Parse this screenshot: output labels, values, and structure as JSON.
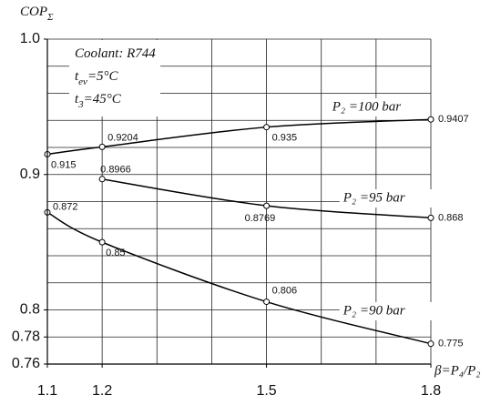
{
  "chart_data": {
    "type": "line",
    "y_label": [
      {
        "text": "COP",
        "sub": false
      },
      {
        "text": "Σ",
        "sub": true
      }
    ],
    "x_label": "β=P₄/P₂",
    "annotation": [
      [
        {
          "text": "Coolant: R744",
          "sub": false
        }
      ],
      [
        {
          "text": "t",
          "sub": false
        },
        {
          "text": "ev",
          "sub": true
        },
        {
          "text": "=5°C",
          "sub": false
        }
      ],
      [
        {
          "text": "t",
          "sub": false
        },
        {
          "text": "3",
          "sub": true
        },
        {
          "text": "=45°C",
          "sub": false
        }
      ]
    ],
    "x": [
      1.1,
      1.2,
      1.5,
      1.8
    ],
    "series": [
      {
        "name": "P₂ =100 bar",
        "color": "#000000",
        "values": [
          0.915,
          0.9204,
          0.935,
          0.9407
        ]
      },
      {
        "name": "P₂ =95 bar",
        "color": "#000000",
        "values": [
          null,
          0.8966,
          0.8769,
          0.868
        ]
      },
      {
        "name": "P₂ =90 bar",
        "color": "#000000",
        "values": [
          0.872,
          0.85,
          0.806,
          0.775
        ]
      }
    ],
    "xlim": [
      1.1,
      1.8
    ],
    "ylim": [
      0.76,
      1.0
    ],
    "xticks": [
      1.1,
      1.2,
      1.5,
      1.8
    ],
    "yticks": [
      {
        "value": 1,
        "label": "1.0"
      },
      0.9,
      0.8,
      0.78,
      0.76
    ],
    "xgrid": [
      1.1,
      1.2,
      1.3,
      1.4,
      1.5,
      1.6,
      1.7,
      1.8
    ],
    "ygrid": [
      0.76,
      0.78,
      0.8,
      0.82,
      0.84,
      0.86,
      0.88,
      0.9,
      0.92,
      0.94,
      0.96,
      0.98,
      1.0
    ],
    "grid": true
  }
}
